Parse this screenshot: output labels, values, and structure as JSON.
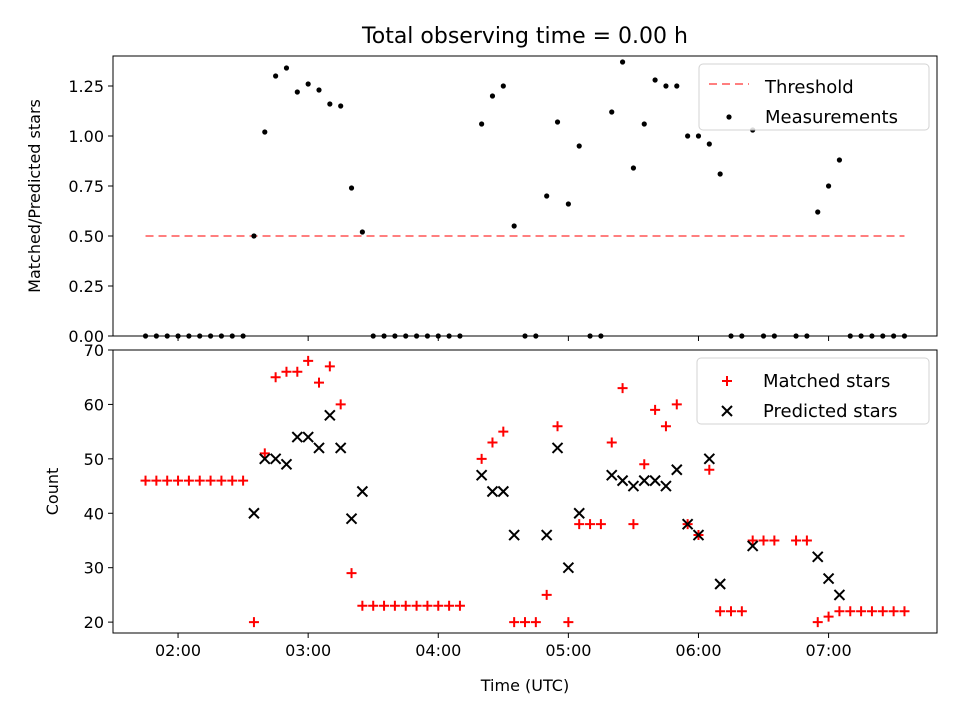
{
  "chart_data": [
    {
      "type": "scatter",
      "title": "Total observing time = 0.00 h",
      "ylabel": "Matched/Predicted stars",
      "xlabel": "",
      "xlim": [
        "01:30",
        "07:50"
      ],
      "ylim": [
        0,
        1.4
      ],
      "x_ticks": [
        "02:00",
        "03:00",
        "04:00",
        "05:00",
        "06:00",
        "07:00"
      ],
      "y_ticks": [
        "0.00",
        "0.25",
        "0.50",
        "0.75",
        "1.00",
        "1.25"
      ],
      "y_tick_values": [
        0,
        0.25,
        0.5,
        0.75,
        1.0,
        1.25
      ],
      "tick_labels_visible_x": false,
      "legend_position": "top-right",
      "series": [
        {
          "name": "Threshold",
          "type": "line",
          "style": "dashed",
          "color": "#ff7f7f",
          "points": [
            [
              "01:45",
              0.5
            ],
            [
              "07:35",
              0.5
            ]
          ]
        },
        {
          "name": "Measurements",
          "type": "scatter",
          "marker": "dot",
          "color": "#000000",
          "points": [
            [
              "01:45",
              0.0
            ],
            [
              "01:50",
              0.0
            ],
            [
              "01:55",
              0.0
            ],
            [
              "02:00",
              0.0
            ],
            [
              "02:05",
              0.0
            ],
            [
              "02:10",
              0.0
            ],
            [
              "02:15",
              0.0
            ],
            [
              "02:20",
              0.0
            ],
            [
              "02:25",
              0.0
            ],
            [
              "02:30",
              0.0
            ],
            [
              "02:35",
              0.5
            ],
            [
              "02:40",
              1.02
            ],
            [
              "02:45",
              1.3
            ],
            [
              "02:50",
              1.34
            ],
            [
              "02:55",
              1.22
            ],
            [
              "03:00",
              1.26
            ],
            [
              "03:05",
              1.23
            ],
            [
              "03:10",
              1.16
            ],
            [
              "03:15",
              1.15
            ],
            [
              "03:20",
              0.74
            ],
            [
              "03:25",
              0.52
            ],
            [
              "03:30",
              0.0
            ],
            [
              "03:35",
              0.0
            ],
            [
              "03:40",
              0.0
            ],
            [
              "03:45",
              0.0
            ],
            [
              "03:50",
              0.0
            ],
            [
              "03:55",
              0.0
            ],
            [
              "04:00",
              0.0
            ],
            [
              "04:05",
              0.0
            ],
            [
              "04:10",
              0.0
            ],
            [
              "04:20",
              1.06
            ],
            [
              "04:25",
              1.2
            ],
            [
              "04:30",
              1.25
            ],
            [
              "04:35",
              0.55
            ],
            [
              "04:40",
              0.0
            ],
            [
              "04:45",
              0.0
            ],
            [
              "04:50",
              0.7
            ],
            [
              "04:55",
              1.07
            ],
            [
              "05:00",
              0.66
            ],
            [
              "05:05",
              0.95
            ],
            [
              "05:10",
              0.0
            ],
            [
              "05:15",
              0.0
            ],
            [
              "05:20",
              1.12
            ],
            [
              "05:25",
              1.37
            ],
            [
              "05:30",
              0.84
            ],
            [
              "05:35",
              1.06
            ],
            [
              "05:40",
              1.28
            ],
            [
              "05:45",
              1.25
            ],
            [
              "05:50",
              1.25
            ],
            [
              "05:55",
              1.0
            ],
            [
              "06:00",
              1.0
            ],
            [
              "06:05",
              0.96
            ],
            [
              "06:10",
              0.81
            ],
            [
              "06:15",
              0.0
            ],
            [
              "06:20",
              0.0
            ],
            [
              "06:25",
              1.03
            ],
            [
              "06:30",
              0.0
            ],
            [
              "06:35",
              0.0
            ],
            [
              "06:45",
              0.0
            ],
            [
              "06:50",
              0.0
            ],
            [
              "06:55",
              0.62
            ],
            [
              "07:00",
              0.75
            ],
            [
              "07:05",
              0.88
            ],
            [
              "07:10",
              0.0
            ],
            [
              "07:15",
              0.0
            ],
            [
              "07:20",
              0.0
            ],
            [
              "07:25",
              0.0
            ],
            [
              "07:30",
              0.0
            ],
            [
              "07:35",
              0.0
            ]
          ]
        }
      ]
    },
    {
      "type": "scatter",
      "title": "",
      "ylabel": "Count",
      "xlabel": "Time (UTC)",
      "xlim": [
        "01:30",
        "07:50"
      ],
      "ylim": [
        18,
        70
      ],
      "x_ticks": [
        "02:00",
        "03:00",
        "04:00",
        "05:00",
        "06:00",
        "07:00"
      ],
      "y_ticks": [
        "20",
        "30",
        "40",
        "50",
        "60",
        "70"
      ],
      "y_tick_values": [
        20,
        30,
        40,
        50,
        60,
        70
      ],
      "tick_labels_visible_x": true,
      "legend_position": "top-right",
      "series": [
        {
          "name": "Matched stars",
          "type": "scatter",
          "marker": "plus",
          "color": "#ff0000",
          "points": [
            [
              "01:45",
              46
            ],
            [
              "01:50",
              46
            ],
            [
              "01:55",
              46
            ],
            [
              "02:00",
              46
            ],
            [
              "02:05",
              46
            ],
            [
              "02:10",
              46
            ],
            [
              "02:15",
              46
            ],
            [
              "02:20",
              46
            ],
            [
              "02:25",
              46
            ],
            [
              "02:30",
              46
            ],
            [
              "02:35",
              20
            ],
            [
              "02:40",
              51
            ],
            [
              "02:45",
              65
            ],
            [
              "02:50",
              66
            ],
            [
              "02:55",
              66
            ],
            [
              "03:00",
              68
            ],
            [
              "03:05",
              64
            ],
            [
              "03:10",
              67
            ],
            [
              "03:15",
              60
            ],
            [
              "03:20",
              29
            ],
            [
              "03:25",
              23
            ],
            [
              "03:30",
              23
            ],
            [
              "03:35",
              23
            ],
            [
              "03:40",
              23
            ],
            [
              "03:45",
              23
            ],
            [
              "03:50",
              23
            ],
            [
              "03:55",
              23
            ],
            [
              "04:00",
              23
            ],
            [
              "04:05",
              23
            ],
            [
              "04:10",
              23
            ],
            [
              "04:20",
              50
            ],
            [
              "04:25",
              53
            ],
            [
              "04:30",
              55
            ],
            [
              "04:35",
              20
            ],
            [
              "04:40",
              20
            ],
            [
              "04:45",
              20
            ],
            [
              "04:50",
              25
            ],
            [
              "04:55",
              56
            ],
            [
              "05:00",
              20
            ],
            [
              "05:05",
              38
            ],
            [
              "05:10",
              38
            ],
            [
              "05:15",
              38
            ],
            [
              "05:20",
              53
            ],
            [
              "05:25",
              63
            ],
            [
              "05:30",
              38
            ],
            [
              "05:35",
              49
            ],
            [
              "05:40",
              59
            ],
            [
              "05:45",
              56
            ],
            [
              "05:50",
              60
            ],
            [
              "05:55",
              38
            ],
            [
              "06:00",
              36
            ],
            [
              "06:05",
              48
            ],
            [
              "06:10",
              22
            ],
            [
              "06:15",
              22
            ],
            [
              "06:20",
              22
            ],
            [
              "06:25",
              35
            ],
            [
              "06:30",
              35
            ],
            [
              "06:35",
              35
            ],
            [
              "06:45",
              35
            ],
            [
              "06:50",
              35
            ],
            [
              "06:55",
              20
            ],
            [
              "07:00",
              21
            ],
            [
              "07:05",
              22
            ],
            [
              "07:10",
              22
            ],
            [
              "07:15",
              22
            ],
            [
              "07:20",
              22
            ],
            [
              "07:25",
              22
            ],
            [
              "07:30",
              22
            ],
            [
              "07:35",
              22
            ]
          ]
        },
        {
          "name": "Predicted stars",
          "type": "scatter",
          "marker": "x",
          "color": "#000000",
          "points": [
            [
              "02:35",
              40
            ],
            [
              "02:40",
              50
            ],
            [
              "02:45",
              50
            ],
            [
              "02:50",
              49
            ],
            [
              "02:55",
              54
            ],
            [
              "03:00",
              54
            ],
            [
              "03:05",
              52
            ],
            [
              "03:10",
              58
            ],
            [
              "03:15",
              52
            ],
            [
              "03:20",
              39
            ],
            [
              "03:25",
              44
            ],
            [
              "04:20",
              47
            ],
            [
              "04:25",
              44
            ],
            [
              "04:30",
              44
            ],
            [
              "04:35",
              36
            ],
            [
              "04:50",
              36
            ],
            [
              "04:55",
              52
            ],
            [
              "05:00",
              30
            ],
            [
              "05:05",
              40
            ],
            [
              "05:20",
              47
            ],
            [
              "05:25",
              46
            ],
            [
              "05:30",
              45
            ],
            [
              "05:35",
              46
            ],
            [
              "05:40",
              46
            ],
            [
              "05:45",
              45
            ],
            [
              "05:50",
              48
            ],
            [
              "05:55",
              38
            ],
            [
              "06:00",
              36
            ],
            [
              "06:05",
              50
            ],
            [
              "06:10",
              27
            ],
            [
              "06:25",
              34
            ],
            [
              "06:55",
              32
            ],
            [
              "07:00",
              28
            ],
            [
              "07:05",
              25
            ]
          ]
        }
      ]
    }
  ]
}
